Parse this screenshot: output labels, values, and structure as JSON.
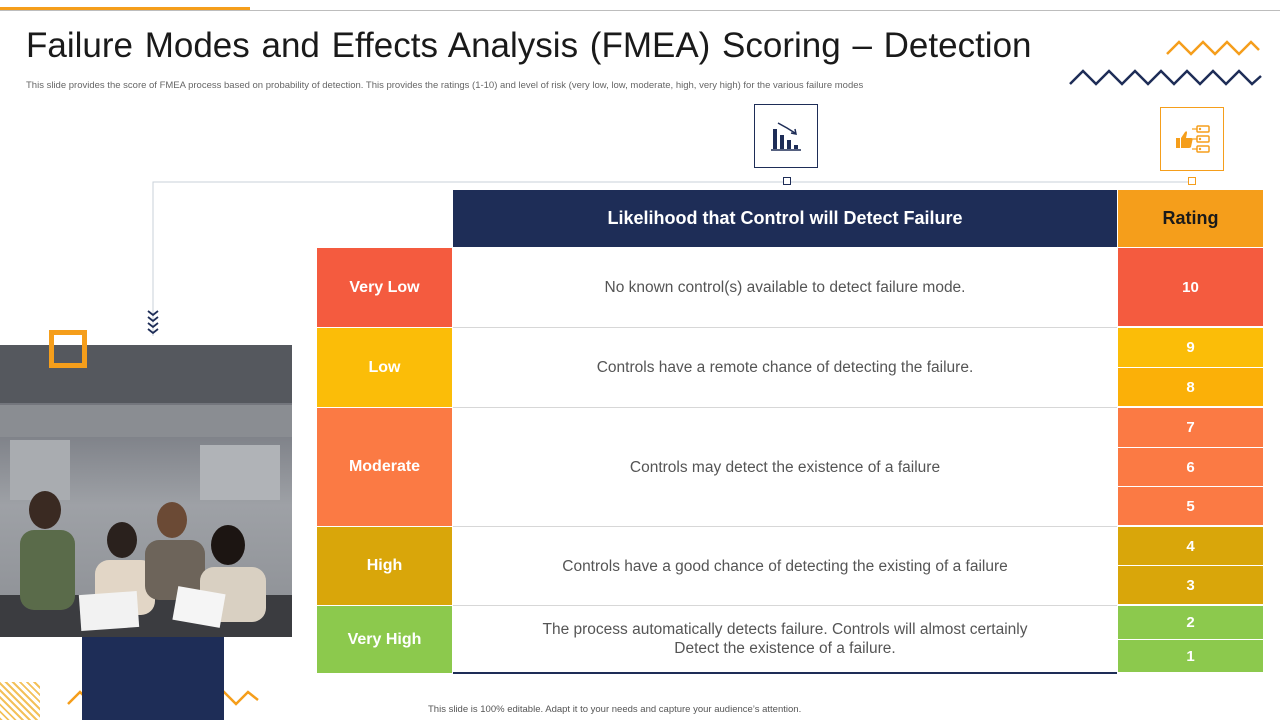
{
  "slide": {
    "title": "Failure Modes and Effects Analysis (FMEA) Scoring – Detection",
    "subtitle": "This slide provides the score of FMEA process based on probability of detection. This provides the ratings (1-10) and level of risk (very low, low, moderate, high, very high) for the various failure modes",
    "footer": "This slide is 100% editable. Adapt it to your needs and capture your audience’s attention."
  },
  "icons": {
    "detection_icon": "declining-bar-chart-icon",
    "rating_icon": "thumbs-up-list-icon"
  },
  "colors": {
    "navy": "#1e2d57",
    "orange": "#f59e1b",
    "very_low": "#f45b3f",
    "low": "#fbbd08",
    "moderate": "#fb7a44",
    "high": "#d9a60a",
    "very_high": "#8cc94d"
  },
  "table": {
    "header_main": "Likelihood that Control will Detect Failure",
    "header_rating": "Rating",
    "rows": [
      {
        "level": "Very Low",
        "description": "No known control(s) available to detect failure mode.",
        "ratings": [
          "10"
        ]
      },
      {
        "level": "Low",
        "description": "Controls have a remote chance of detecting the failure.",
        "ratings": [
          "9",
          "8"
        ]
      },
      {
        "level": "Moderate",
        "description": "Controls may detect the existence of a failure",
        "ratings": [
          "7",
          "6",
          "5"
        ]
      },
      {
        "level": "High",
        "description": "Controls have a good chance of detecting the existing of a failure",
        "ratings": [
          "4",
          "3"
        ]
      },
      {
        "level": "Very High",
        "description_line1": "The process automatically detects failure. Controls will almost certainly",
        "description_line2": "Detect the existence of a failure.",
        "ratings": [
          "2",
          "1"
        ]
      }
    ]
  }
}
